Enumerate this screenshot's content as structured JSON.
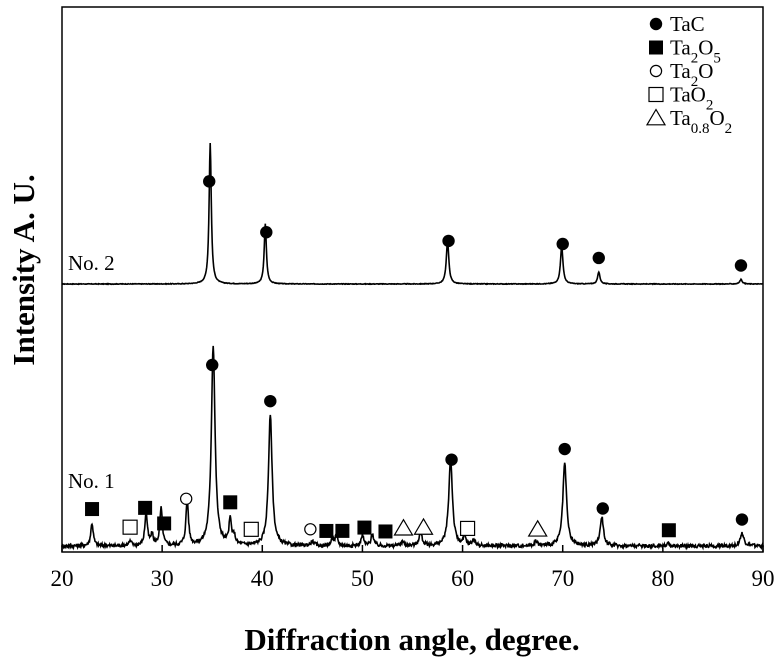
{
  "chart_data": {
    "type": "line",
    "title": "",
    "xlabel": "Diffraction angle, degree.",
    "ylabel": "Intensity A. U.",
    "xlim": [
      20,
      90
    ],
    "xticks": [
      20,
      30,
      40,
      50,
      60,
      70,
      80,
      90
    ],
    "grid": false,
    "legend_position": "top-right",
    "legend": [
      {
        "key": "TaC",
        "label": "TaC",
        "marker": "filled-circle"
      },
      {
        "key": "Ta2O5",
        "label": "Ta2O5",
        "marker": "filled-square"
      },
      {
        "key": "Ta2O",
        "label": "Ta2O",
        "marker": "open-circle"
      },
      {
        "key": "TaO2",
        "label": "TaO2",
        "marker": "open-square"
      },
      {
        "key": "Ta08O2",
        "label": "Ta0.8O2",
        "marker": "open-triangle"
      }
    ],
    "series": [
      {
        "name": "No. 2",
        "peaks": [
          {
            "x": 34.8,
            "h": 0.94,
            "w": 0.13
          },
          {
            "x": 40.3,
            "h": 0.4,
            "w": 0.13
          },
          {
            "x": 58.5,
            "h": 0.28,
            "w": 0.15
          },
          {
            "x": 69.9,
            "h": 0.25,
            "w": 0.15
          },
          {
            "x": 73.6,
            "h": 0.08,
            "w": 0.14
          },
          {
            "x": 87.8,
            "h": 0.03,
            "w": 0.15
          }
        ],
        "markers": [
          {
            "phase": "TaC",
            "x": 34.7
          },
          {
            "phase": "TaC",
            "x": 40.4
          },
          {
            "phase": "TaC",
            "x": 58.6
          },
          {
            "phase": "TaC",
            "x": 70.0
          },
          {
            "phase": "TaC",
            "x": 73.6
          },
          {
            "phase": "TaC",
            "x": 87.8
          }
        ]
      },
      {
        "name": "No. 1",
        "peaks": [
          {
            "x": 23.0,
            "h": 0.11,
            "w": 0.15
          },
          {
            "x": 26.8,
            "h": 0.02,
            "w": 0.2
          },
          {
            "x": 28.4,
            "h": 0.16,
            "w": 0.15
          },
          {
            "x": 29.0,
            "h": 0.05,
            "w": 0.15
          },
          {
            "x": 29.9,
            "h": 0.18,
            "w": 0.15
          },
          {
            "x": 32.5,
            "h": 0.22,
            "w": 0.15
          },
          {
            "x": 35.1,
            "h": 0.97,
            "w": 0.22
          },
          {
            "x": 36.8,
            "h": 0.12,
            "w": 0.15
          },
          {
            "x": 37.2,
            "h": 0.04,
            "w": 0.15
          },
          {
            "x": 40.8,
            "h": 0.63,
            "w": 0.22
          },
          {
            "x": 45.0,
            "h": 0.02,
            "w": 0.2
          },
          {
            "x": 47.0,
            "h": 0.03,
            "w": 0.15
          },
          {
            "x": 47.4,
            "h": 0.05,
            "w": 0.15
          },
          {
            "x": 50.0,
            "h": 0.05,
            "w": 0.15
          },
          {
            "x": 51.0,
            "h": 0.06,
            "w": 0.15
          },
          {
            "x": 54.0,
            "h": 0.02,
            "w": 0.2
          },
          {
            "x": 55.8,
            "h": 0.06,
            "w": 0.2
          },
          {
            "x": 58.8,
            "h": 0.42,
            "w": 0.22
          },
          {
            "x": 60.2,
            "h": 0.04,
            "w": 0.15
          },
          {
            "x": 61.1,
            "h": 0.03,
            "w": 0.15
          },
          {
            "x": 67.3,
            "h": 0.02,
            "w": 0.2
          },
          {
            "x": 70.2,
            "h": 0.4,
            "w": 0.22
          },
          {
            "x": 73.9,
            "h": 0.14,
            "w": 0.2
          },
          {
            "x": 80.5,
            "h": 0.01,
            "w": 0.2
          },
          {
            "x": 87.9,
            "h": 0.06,
            "w": 0.22
          }
        ],
        "markers": [
          {
            "phase": "Ta2O5",
            "x": 23.0
          },
          {
            "phase": "TaO2",
            "x": 26.8
          },
          {
            "phase": "Ta2O5",
            "x": 28.3
          },
          {
            "phase": "Ta2O5",
            "x": 30.2
          },
          {
            "phase": "Ta2O",
            "x": 32.4
          },
          {
            "phase": "TaC",
            "x": 35.0
          },
          {
            "phase": "Ta2O5",
            "x": 36.8
          },
          {
            "phase": "TaO2",
            "x": 38.9
          },
          {
            "phase": "TaC",
            "x": 40.8
          },
          {
            "phase": "Ta2O",
            "x": 44.8
          },
          {
            "phase": "Ta2O5",
            "x": 46.4
          },
          {
            "phase": "Ta2O5",
            "x": 48.0
          },
          {
            "phase": "Ta2O5",
            "x": 50.2
          },
          {
            "phase": "Ta2O5",
            "x": 52.3
          },
          {
            "phase": "Ta08O2",
            "x": 54.1
          },
          {
            "phase": "Ta08O2",
            "x": 56.1
          },
          {
            "phase": "TaC",
            "x": 58.9
          },
          {
            "phase": "TaO2",
            "x": 60.5
          },
          {
            "phase": "Ta08O2",
            "x": 67.5
          },
          {
            "phase": "TaC",
            "x": 70.2
          },
          {
            "phase": "TaC",
            "x": 74.0
          },
          {
            "phase": "Ta2O5",
            "x": 80.6
          },
          {
            "phase": "TaC",
            "x": 87.9
          }
        ]
      }
    ]
  }
}
